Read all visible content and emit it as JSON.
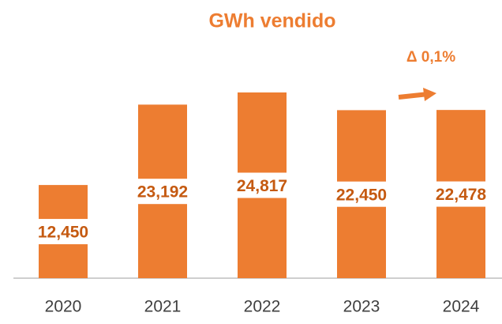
{
  "chart_data": {
    "type": "bar",
    "title": "GWh vendido",
    "categories": [
      "2020",
      "2021",
      "2022",
      "2023",
      "2024"
    ],
    "values": [
      12450,
      23192,
      24817,
      22450,
      22478
    ],
    "value_labels": [
      "12,450",
      "23,192",
      "24,817",
      "22,450",
      "22,478"
    ],
    "color": "#ED7D31",
    "annotation": "Δ 0,1%"
  }
}
